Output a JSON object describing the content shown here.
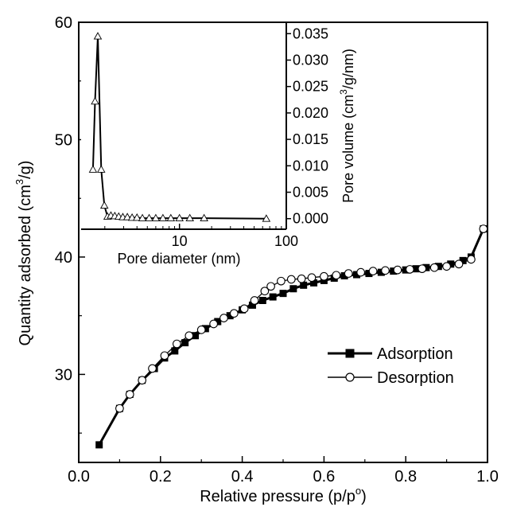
{
  "chart_data": [
    {
      "type": "line",
      "role": "main",
      "xlabel": "Relative pressure (p/p",
      "xlabel_sup": "o",
      "xlabel_end": ")",
      "ylabel": "Quantity adsorbed (cm",
      "ylabel_sup": "3",
      "ylabel_end": "/g)",
      "xlim": [
        0.0,
        1.0
      ],
      "ylim": [
        22.5,
        60
      ],
      "x_ticks": [
        0.0,
        0.2,
        0.4,
        0.6,
        0.8,
        1.0
      ],
      "x_tick_labels": [
        "0.0",
        "0.2",
        "0.4",
        "0.6",
        "0.8",
        "1.0"
      ],
      "y_ticks": [
        30,
        40,
        50,
        60
      ],
      "y_tick_labels": [
        "30",
        "40",
        "50",
        "60"
      ],
      "legend_position": "center-right",
      "series": [
        {
          "name": "Adsorption",
          "marker": "filled-square",
          "x": [
            0.05,
            0.1,
            0.125,
            0.155,
            0.185,
            0.21,
            0.235,
            0.26,
            0.285,
            0.31,
            0.34,
            0.37,
            0.4,
            0.425,
            0.45,
            0.475,
            0.5,
            0.525,
            0.55,
            0.575,
            0.6,
            0.625,
            0.65,
            0.68,
            0.71,
            0.74,
            0.77,
            0.8,
            0.825,
            0.85,
            0.88,
            0.91,
            0.94,
            0.96,
            0.99
          ],
          "y": [
            24.0,
            27.1,
            28.3,
            29.5,
            30.5,
            31.4,
            32.0,
            32.7,
            33.3,
            33.9,
            34.5,
            35.0,
            35.5,
            35.9,
            36.3,
            36.6,
            36.9,
            37.3,
            37.6,
            37.8,
            38.0,
            38.2,
            38.4,
            38.5,
            38.6,
            38.7,
            38.8,
            38.9,
            39.0,
            39.1,
            39.2,
            39.4,
            39.7,
            40.0,
            42.4
          ]
        },
        {
          "name": "Desorption",
          "marker": "open-circle",
          "x": [
            0.99,
            0.96,
            0.93,
            0.9,
            0.87,
            0.84,
            0.81,
            0.78,
            0.75,
            0.72,
            0.69,
            0.66,
            0.63,
            0.6,
            0.57,
            0.545,
            0.52,
            0.495,
            0.47,
            0.455,
            0.43,
            0.405,
            0.38,
            0.355,
            0.33,
            0.3,
            0.27,
            0.24,
            0.21,
            0.18,
            0.155,
            0.125,
            0.1
          ],
          "y": [
            42.4,
            39.8,
            39.4,
            39.2,
            39.1,
            39.0,
            38.95,
            38.9,
            38.85,
            38.8,
            38.7,
            38.6,
            38.45,
            38.35,
            38.25,
            38.15,
            38.1,
            37.95,
            37.5,
            37.1,
            36.3,
            35.6,
            35.2,
            34.8,
            34.3,
            33.8,
            33.3,
            32.6,
            31.6,
            30.5,
            29.5,
            28.3,
            27.1
          ]
        }
      ]
    },
    {
      "type": "line",
      "role": "inset",
      "xscale": "log",
      "xlabel": "Pore diameter (nm)",
      "ylabel": "Pore volume (cm",
      "ylabel_sup": "3",
      "ylabel_end": "/g/nm)",
      "xlim": [
        1.2,
        100
      ],
      "ylim": [
        -0.002,
        0.037
      ],
      "x_ticks": [
        10,
        100
      ],
      "x_tick_labels": [
        "10",
        "100"
      ],
      "y_ticks": [
        0.0,
        0.005,
        0.01,
        0.015,
        0.02,
        0.025,
        0.03,
        0.035
      ],
      "y_tick_labels": [
        "0.000",
        "0.005",
        "0.010",
        "0.015",
        "0.020",
        "0.025",
        "0.030",
        "0.035"
      ],
      "y_axis_side": "right",
      "series": [
        {
          "marker": "open-triangle",
          "x": [
            1.55,
            1.62,
            1.72,
            1.85,
            1.98,
            2.12,
            2.28,
            2.48,
            2.7,
            2.95,
            3.25,
            3.6,
            4.0,
            4.5,
            5.2,
            6.0,
            7.0,
            8.3,
            10.0,
            12.5,
            17.0,
            65.0
          ],
          "y": [
            0.0093,
            0.0222,
            0.0345,
            0.0093,
            0.0025,
            0.0004,
            0.0006,
            0.0005,
            0.0004,
            0.0003,
            0.0003,
            0.0002,
            0.0002,
            0.0001,
            0.0001,
            0.0001,
            0.0001,
            0.0001,
            0.0001,
            0.0001,
            0.0001,
            0.0
          ]
        }
      ]
    }
  ]
}
